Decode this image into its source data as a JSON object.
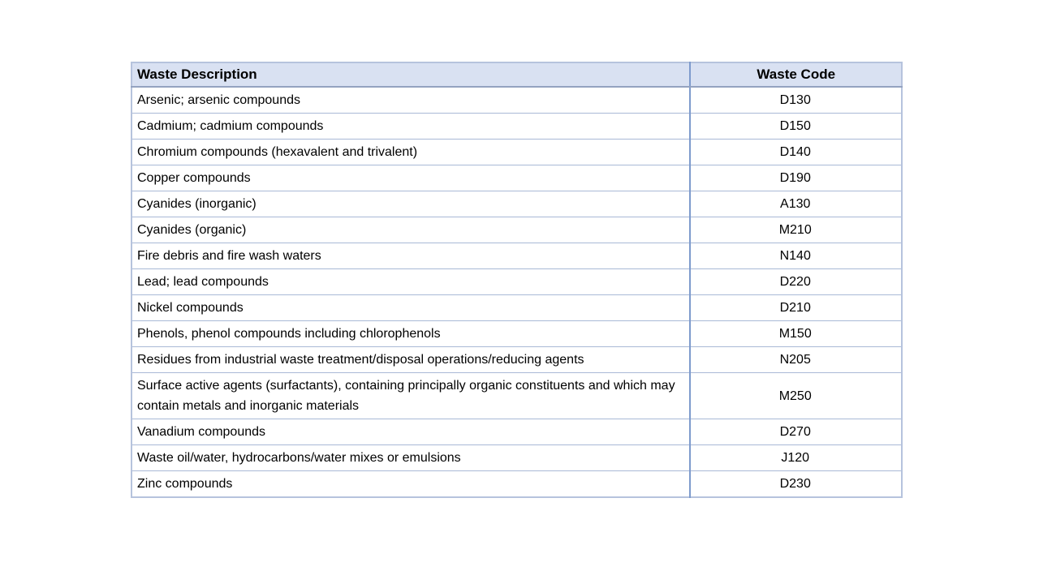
{
  "page": {
    "background": "#ffffff"
  },
  "table": {
    "headers": {
      "description": "Waste Description",
      "code": "Waste Code"
    },
    "rows": [
      {
        "description": "Arsenic; arsenic compounds",
        "code": "D130"
      },
      {
        "description": "Cadmium; cadmium compounds",
        "code": "D150"
      },
      {
        "description": "Chromium compounds (hexavalent and trivalent)",
        "code": "D140"
      },
      {
        "description": "Copper compounds",
        "code": "D190"
      },
      {
        "description": "Cyanides (inorganic)",
        "code": "A130"
      },
      {
        "description": "Cyanides (organic)",
        "code": "M210"
      },
      {
        "description": "Fire debris and fire wash waters",
        "code": "N140"
      },
      {
        "description": "Lead; lead compounds",
        "code": "D220"
      },
      {
        "description": "Nickel compounds",
        "code": "D210"
      },
      {
        "description": "Phenols, phenol compounds including chlorophenols",
        "code": "M150"
      },
      {
        "description": "Residues from industrial waste treatment/disposal operations/reducing agents",
        "code": "N205"
      },
      {
        "description": "Surface active agents (surfactants), containing principally organic constituents and which may contain metals and inorganic materials",
        "code": "M250"
      },
      {
        "description": "Vanadium compounds",
        "code": "D270"
      },
      {
        "description": "Waste oil/water, hydrocarbons/water mixes or emulsions",
        "code": "J120"
      },
      {
        "description": "Zinc compounds",
        "code": "D230"
      }
    ],
    "colors": {
      "header_bg": "#d9e1f2",
      "outer_border": "#b6c3dd",
      "column_divider": "#7e9bcd",
      "header_divider": "#94a3c0",
      "row_divider": "#a9b9d6",
      "text": "#000000"
    }
  }
}
